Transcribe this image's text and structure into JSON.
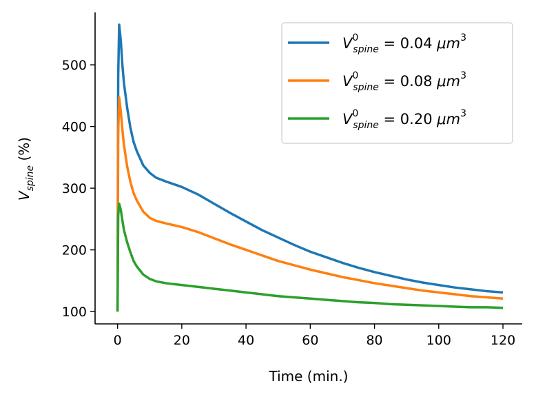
{
  "chart_data": {
    "type": "line",
    "xlabel": "Time (min.)",
    "ylabel": {
      "base": "V",
      "sub": "spine",
      "suffix": " (%)"
    },
    "xlim": [
      -7,
      126
    ],
    "ylim": [
      80,
      585
    ],
    "xticks": [
      0,
      20,
      40,
      60,
      80,
      100,
      120
    ],
    "yticks": [
      100,
      200,
      300,
      400,
      500
    ],
    "grid": false,
    "legend_position": "top-right",
    "series": [
      {
        "name": "V^0_spine = 0.04 μm^3",
        "legend": {
          "base": "V",
          "sup": "0",
          "sub": "spine",
          "value": "0.04",
          "unit": "μm",
          "unit_sup": "3"
        },
        "color": "#1f77b4",
        "x": [
          0,
          0.2,
          0.5,
          1,
          1.5,
          2,
          3,
          4,
          5,
          6,
          8,
          10,
          12,
          15,
          20,
          25,
          30,
          35,
          40,
          45,
          50,
          55,
          60,
          65,
          70,
          75,
          80,
          85,
          90,
          95,
          100,
          105,
          110,
          115,
          120
        ],
        "y": [
          100,
          480,
          565,
          540,
          500,
          470,
          430,
          398,
          375,
          360,
          337,
          325,
          317,
          311,
          302,
          290,
          275,
          260,
          246,
          232,
          220,
          208,
          197,
          188,
          179,
          171,
          164,
          158,
          152,
          147,
          143,
          139,
          136,
          133,
          131
        ]
      },
      {
        "name": "V^0_spine = 0.08 μm^3",
        "legend": {
          "base": "V",
          "sup": "0",
          "sub": "spine",
          "value": "0.08",
          "unit": "μm",
          "unit_sup": "3"
        },
        "color": "#ff7f0e",
        "x": [
          0,
          0.2,
          0.5,
          1,
          1.5,
          2,
          3,
          4,
          5,
          6,
          8,
          10,
          12,
          15,
          20,
          25,
          30,
          35,
          40,
          45,
          50,
          55,
          60,
          65,
          70,
          75,
          80,
          85,
          90,
          95,
          100,
          105,
          110,
          115,
          120
        ],
        "y": [
          100,
          390,
          447,
          425,
          395,
          370,
          335,
          310,
          292,
          280,
          262,
          252,
          247,
          243,
          237,
          229,
          219,
          209,
          200,
          191,
          182,
          175,
          168,
          162,
          156,
          151,
          146,
          142,
          138,
          134,
          131,
          128,
          125,
          123,
          121
        ]
      },
      {
        "name": "V^0_spine = 0.20 μm^3",
        "legend": {
          "base": "V",
          "sup": "0",
          "sub": "spine",
          "value": "0.20",
          "unit": "μm",
          "unit_sup": "3"
        },
        "color": "#2ca02c",
        "x": [
          0,
          0.2,
          0.5,
          1,
          1.5,
          2,
          3,
          4,
          5,
          6,
          8,
          10,
          12,
          15,
          20,
          25,
          30,
          35,
          40,
          45,
          50,
          55,
          60,
          65,
          70,
          75,
          80,
          85,
          90,
          95,
          100,
          105,
          110,
          115,
          120
        ],
        "y": [
          100,
          255,
          275,
          265,
          248,
          232,
          212,
          196,
          182,
          173,
          160,
          153,
          149,
          146,
          143,
          140,
          137,
          134,
          131,
          128,
          125,
          123,
          121,
          119,
          117,
          115,
          114,
          112,
          111,
          110,
          109,
          108,
          107,
          107,
          106
        ]
      }
    ]
  }
}
